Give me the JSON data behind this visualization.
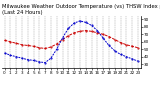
{
  "title1": "Milwaukee Weather Outdoor Temperature (vs) THSW Index per Hour",
  "title2": "(Last 24 Hours)",
  "hours": [
    0,
    1,
    2,
    3,
    4,
    5,
    6,
    7,
    8,
    9,
    10,
    11,
    12,
    13,
    14,
    15,
    16,
    17,
    18,
    19,
    20,
    21,
    22,
    23
  ],
  "temp": [
    62,
    60,
    58,
    56,
    55,
    54,
    52,
    51,
    53,
    57,
    63,
    68,
    72,
    74,
    75,
    74,
    72,
    70,
    67,
    63,
    59,
    56,
    54,
    52
  ],
  "thsw": [
    45,
    42,
    40,
    38,
    36,
    35,
    33,
    32,
    38,
    50,
    65,
    78,
    85,
    88,
    86,
    82,
    75,
    65,
    55,
    48,
    43,
    40,
    37,
    34
  ],
  "temp_color": "#cc0000",
  "thsw_color": "#0000cc",
  "bg_color": "#ffffff",
  "grid_color": "#888888",
  "ylim_min": 25,
  "ylim_max": 95,
  "yticks": [
    30,
    40,
    50,
    60,
    70,
    80,
    90
  ],
  "title_fontsize": 3.8,
  "tick_fontsize": 3.0,
  "line_width": 0.7
}
